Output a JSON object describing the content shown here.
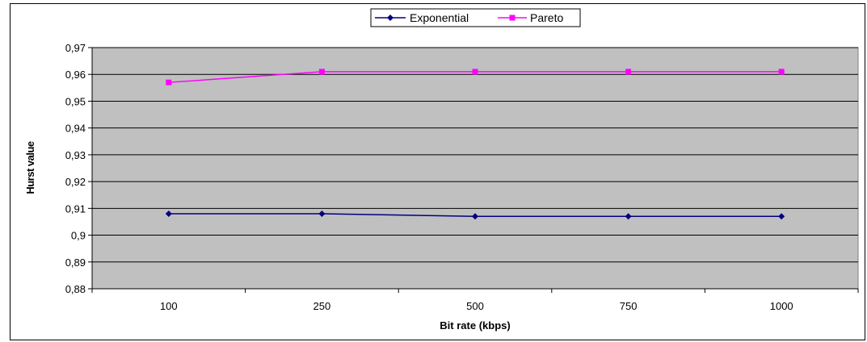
{
  "chart_data": {
    "type": "line",
    "title": "",
    "xlabel": "Bit rate  (kbps)",
    "ylabel": "Hurst value",
    "categories": [
      "100",
      "250",
      "500",
      "750",
      "1000"
    ],
    "ylim": [
      0.88,
      0.97
    ],
    "yticks": [
      "0,88",
      "0,89",
      "0,9",
      "0,91",
      "0,92",
      "0,93",
      "0,94",
      "0,95",
      "0,96",
      "0,97"
    ],
    "grid": "horizontal",
    "legend": "top-center",
    "series": [
      {
        "name": "Exponential",
        "color": "#000080",
        "marker": "diamond",
        "values": [
          0.908,
          0.908,
          0.907,
          0.907,
          0.907
        ]
      },
      {
        "name": "Pareto",
        "color": "#ff00ff",
        "marker": "square",
        "values": [
          0.957,
          0.961,
          0.961,
          0.961,
          0.961
        ]
      }
    ],
    "plot_background": "#c0c0c0"
  }
}
